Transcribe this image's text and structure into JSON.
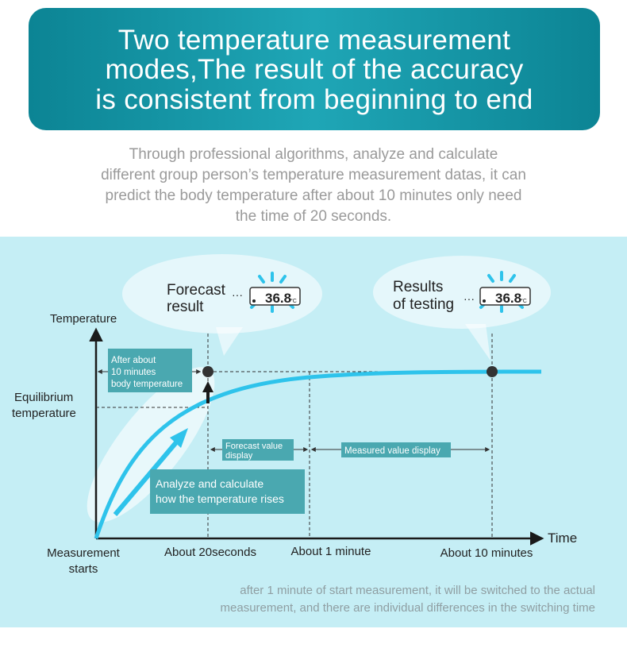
{
  "banner": {
    "title_lines": [
      "Two temperature measurement",
      "modes,The result of the accuracy",
      "is consistent from beginning to end"
    ]
  },
  "intro": {
    "lines": [
      "Through professional algorithms, analyze and calculate",
      "different group person’s temperature measurement datas, it can",
      "predict the body temperature after about 10  minutes only need",
      "the time of 20 seconds."
    ]
  },
  "diagram": {
    "y_axis_label": "Temperature",
    "x_axis_label": "Time",
    "equilibrium_label": [
      "Equilibrium",
      "temperature"
    ],
    "origin_label": [
      "Measurement",
      "starts"
    ],
    "x_ticks": [
      "About 20seconds",
      "About 1 minute",
      "About 10 minutes"
    ],
    "forecast_bubble": {
      "label": [
        "Forecast",
        "result"
      ],
      "reading": "36.8",
      "unit": "°C"
    },
    "results_bubble": {
      "label": [
        "Results",
        "of testing"
      ],
      "reading": "36.8",
      "unit": "°C"
    },
    "after_box": [
      "After about",
      "10 minutes",
      "body temperature"
    ],
    "analyze_box": [
      "Analyze and calculate",
      "how the temperature rises"
    ],
    "forecast_range_label": [
      "Forecast value",
      "display"
    ],
    "measured_range_label": "Measured value display"
  },
  "footnote": {
    "lines": [
      "after 1 minute of start measurement, it will be switched to the actual",
      "measurement, and there are individual differences in the switching time"
    ]
  },
  "colors": {
    "banner": "#0c8494",
    "panel": "#c5eef5",
    "curve": "#2ec3eb",
    "label_box": "#4aa8b0",
    "axis": "#1a1a1a"
  }
}
